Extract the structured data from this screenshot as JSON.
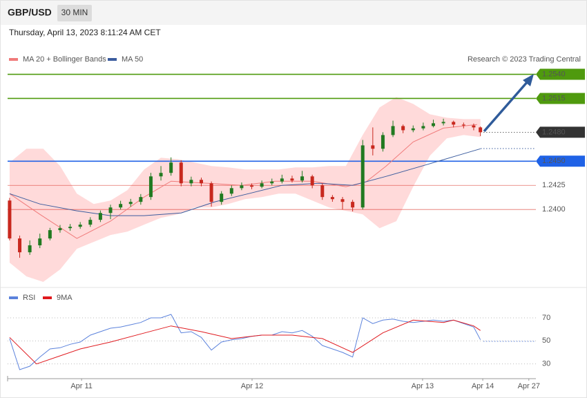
{
  "header": {
    "symbol": "GBP/USD",
    "timeframe": "30 MIN",
    "date": "Thursday, April 13, 2023 8:11:24 AM CET",
    "credit": "Research © 2023 Trading Central"
  },
  "chart_data": [
    {
      "type": "candlestick",
      "up_color": "#217a21",
      "down_color": "#c8281e",
      "xlim": [
        -0.6,
        156.5
      ],
      "ylim": [
        1.232,
        1.2574
      ],
      "x": [
        0,
        3,
        6,
        9,
        12,
        15,
        18,
        21,
        24,
        27,
        30,
        33,
        36,
        39,
        42,
        45,
        48,
        51,
        54,
        57,
        60,
        63,
        66,
        69,
        72,
        75,
        78,
        81,
        84,
        87,
        90,
        93,
        96,
        99,
        102,
        105,
        108,
        111,
        114,
        117,
        120,
        123,
        126,
        129,
        132,
        135,
        138,
        140
      ],
      "open": [
        1.24093,
        1.237,
        1.23557,
        1.23629,
        1.237,
        1.23786,
        1.23807,
        1.23821,
        1.23843,
        1.23893,
        1.23964,
        1.24021,
        1.24057,
        1.24079,
        1.24129,
        1.24343,
        1.24379,
        1.24486,
        1.24271,
        1.24307,
        1.24271,
        1.24079,
        1.24164,
        1.24221,
        1.2425,
        1.24236,
        1.24271,
        1.2429,
        1.24321,
        1.243,
        1.24343,
        1.2425,
        1.24129,
        1.24107,
        1.24079,
        1.24021,
        1.24664,
        1.24629,
        1.24771,
        1.24864,
        1.24821,
        1.2484,
        1.24864,
        1.24893,
        1.24907,
        1.24879,
        1.2487,
        1.2485
      ],
      "high": [
        1.2412,
        1.2373,
        1.2368,
        1.2375,
        1.2381,
        1.2384,
        1.2385,
        1.2387,
        1.2392,
        1.2399,
        1.2405,
        1.2409,
        1.2411,
        1.2416,
        1.2438,
        1.2445,
        1.2454,
        1.2451,
        1.2434,
        1.2433,
        1.2429,
        1.2419,
        1.2425,
        1.2428,
        1.2427,
        1.243,
        1.2432,
        1.2436,
        1.2435,
        1.244,
        1.2436,
        1.2427,
        1.2415,
        1.2413,
        1.241,
        1.2472,
        1.2485,
        1.248,
        1.2492,
        1.2488,
        1.2487,
        1.249,
        1.2493,
        1.2494,
        1.2492,
        1.249,
        1.2489,
        1.2486
      ],
      "low": [
        1.2368,
        1.235,
        1.2353,
        1.236,
        1.2368,
        1.2376,
        1.2378,
        1.238,
        1.2382,
        1.2387,
        1.239,
        1.24,
        1.2403,
        1.2405,
        1.241,
        1.243,
        1.2435,
        1.2424,
        1.2424,
        1.2424,
        1.2403,
        1.2405,
        1.2414,
        1.242,
        1.2421,
        1.2422,
        1.2425,
        1.2427,
        1.2428,
        1.2428,
        1.2422,
        1.241,
        1.2408,
        1.24,
        1.2398,
        1.24,
        1.2456,
        1.246,
        1.2475,
        1.2479,
        1.248,
        1.2482,
        1.2485,
        1.2487,
        1.2485,
        1.2484,
        1.2482,
        1.2476
      ],
      "close": [
        1.237,
        1.23557,
        1.23629,
        1.237,
        1.23786,
        1.23807,
        1.23821,
        1.23843,
        1.23893,
        1.23964,
        1.24021,
        1.24057,
        1.24079,
        1.24129,
        1.24343,
        1.24379,
        1.24486,
        1.24271,
        1.24307,
        1.24271,
        1.24079,
        1.24164,
        1.24221,
        1.2425,
        1.24236,
        1.24271,
        1.2429,
        1.24321,
        1.243,
        1.24343,
        1.2425,
        1.24129,
        1.24107,
        1.24079,
        1.24021,
        1.24664,
        1.24629,
        1.24771,
        1.24864,
        1.24821,
        1.2484,
        1.24864,
        1.24893,
        1.24907,
        1.24879,
        1.2487,
        1.2485,
        1.248
      ],
      "bands": {
        "color": "#ffdada",
        "x": [
          0,
          5,
          10,
          15,
          20,
          25,
          30,
          35,
          40,
          45,
          50,
          55,
          60,
          65,
          70,
          75,
          80,
          85,
          90,
          95,
          100,
          105,
          110,
          115,
          120,
          125,
          130,
          135,
          140
        ],
        "upper": [
          1.24486,
          1.24629,
          1.24629,
          1.2445,
          1.24164,
          1.24057,
          1.24093,
          1.242,
          1.24414,
          1.24536,
          1.24521,
          1.24486,
          1.2445,
          1.24436,
          1.24414,
          1.24414,
          1.24414,
          1.24436,
          1.24436,
          1.2445,
          1.2445,
          1.24771,
          1.25057,
          1.25164,
          1.25093,
          1.24986,
          1.2495,
          1.24936,
          1.24936
        ],
        "lower": [
          1.2345,
          1.23307,
          1.2325,
          1.23379,
          1.23593,
          1.23664,
          1.23736,
          1.23771,
          1.23843,
          1.23914,
          1.2395,
          1.24021,
          1.24021,
          1.24057,
          1.24107,
          1.24129,
          1.24164,
          1.24164,
          1.24093,
          1.24021,
          1.23986,
          1.2395,
          1.23807,
          1.23879,
          1.24236,
          1.24557,
          1.24736,
          1.24771,
          1.2475
        ]
      },
      "series": [
        {
          "name": "MA 20 + Bollinger Bands",
          "color": "#f07a7a",
          "x": [
            0,
            9,
            20,
            30,
            40,
            48,
            59,
            69,
            79,
            90,
            100,
            106,
            112,
            120,
            129,
            139
          ],
          "values": [
            1.24164,
            1.2395,
            1.237,
            1.23879,
            1.24129,
            1.24293,
            1.24271,
            1.2425,
            1.24293,
            1.24293,
            1.24236,
            1.24286,
            1.2445,
            1.247,
            1.24843,
            1.24879
          ]
        },
        {
          "name": "MA 50",
          "color": "#3b5c9e",
          "x": [
            0,
            9,
            20,
            30,
            40,
            51,
            61,
            71,
            81,
            92,
            102,
            112,
            124,
            133,
            140
          ],
          "values": [
            1.24164,
            1.24057,
            1.23986,
            1.23936,
            1.23936,
            1.23964,
            1.24079,
            1.24164,
            1.2425,
            1.24271,
            1.2425,
            1.24343,
            1.24464,
            1.24557,
            1.24629
          ]
        }
      ],
      "levels": [
        {
          "value": 1.254,
          "label": "1.2540",
          "color": "#4f9a0e",
          "boxed": true,
          "dotted": false
        },
        {
          "value": 1.2515,
          "label": "1.2515",
          "color": "#4f9a0e",
          "boxed": true,
          "dotted": false
        },
        {
          "value": 1.248,
          "label": "1.2480",
          "color": "#333333",
          "boxed": true,
          "dotted": true
        },
        {
          "value": 1.245,
          "label": "1.2450",
          "color": "#1f62e6",
          "boxed": true,
          "dotted": false
        },
        {
          "value": 1.2425,
          "label": "1.2425",
          "color": "#d9342b",
          "boxed": false,
          "dotted": false
        },
        {
          "value": 1.24,
          "label": "1.2400",
          "color": "#d9342b",
          "boxed": false,
          "dotted": false
        }
      ]
    },
    {
      "type": "line",
      "xlim": [
        -0.6,
        156.5
      ],
      "ylim": [
        19,
        94
      ],
      "yticks": [
        70,
        50,
        30
      ],
      "grid": true,
      "xticks": [
        {
          "value": 21.4,
          "label": "Apr 11"
        },
        {
          "value": 72.1,
          "label": "Apr 12"
        },
        {
          "value": 122.8,
          "label": "Apr 13"
        },
        {
          "value": 140.7,
          "label": "Apr 14"
        },
        {
          "value": 154.4,
          "label": "Apr 27"
        }
      ],
      "series": [
        {
          "name": "RSI",
          "color": "#5b82dc",
          "x": [
            0,
            3,
            6,
            9,
            12,
            15,
            18,
            21,
            24,
            27,
            30,
            33,
            36,
            39,
            42,
            45,
            48,
            51,
            54,
            57,
            60,
            63,
            66,
            69,
            72,
            75,
            78,
            81,
            84,
            87,
            90,
            93,
            96,
            99,
            102,
            105,
            108,
            111,
            114,
            117,
            120,
            123,
            126,
            129,
            132,
            135,
            138,
            140
          ],
          "values": [
            52,
            25,
            28,
            36,
            43,
            44,
            47,
            49,
            55,
            58,
            61,
            62,
            64,
            66,
            70,
            70,
            73,
            57,
            58,
            53,
            42,
            49,
            51,
            52,
            54,
            55,
            55,
            58,
            57,
            59,
            54,
            46,
            43,
            40,
            36,
            70,
            65,
            68,
            69,
            67,
            66,
            67,
            68,
            67,
            68,
            65,
            62,
            51
          ]
        },
        {
          "name": "9MA",
          "color": "#e0191e",
          "x": [
            0,
            8,
            15,
            21,
            30,
            39,
            48,
            57,
            66,
            75,
            84,
            93,
            102,
            111,
            120,
            129,
            132,
            138,
            140
          ],
          "values": [
            53,
            30,
            37,
            43,
            49,
            56,
            63,
            58,
            52,
            55,
            55,
            52,
            40,
            57,
            68,
            66,
            68,
            63,
            59
          ]
        }
      ]
    }
  ]
}
